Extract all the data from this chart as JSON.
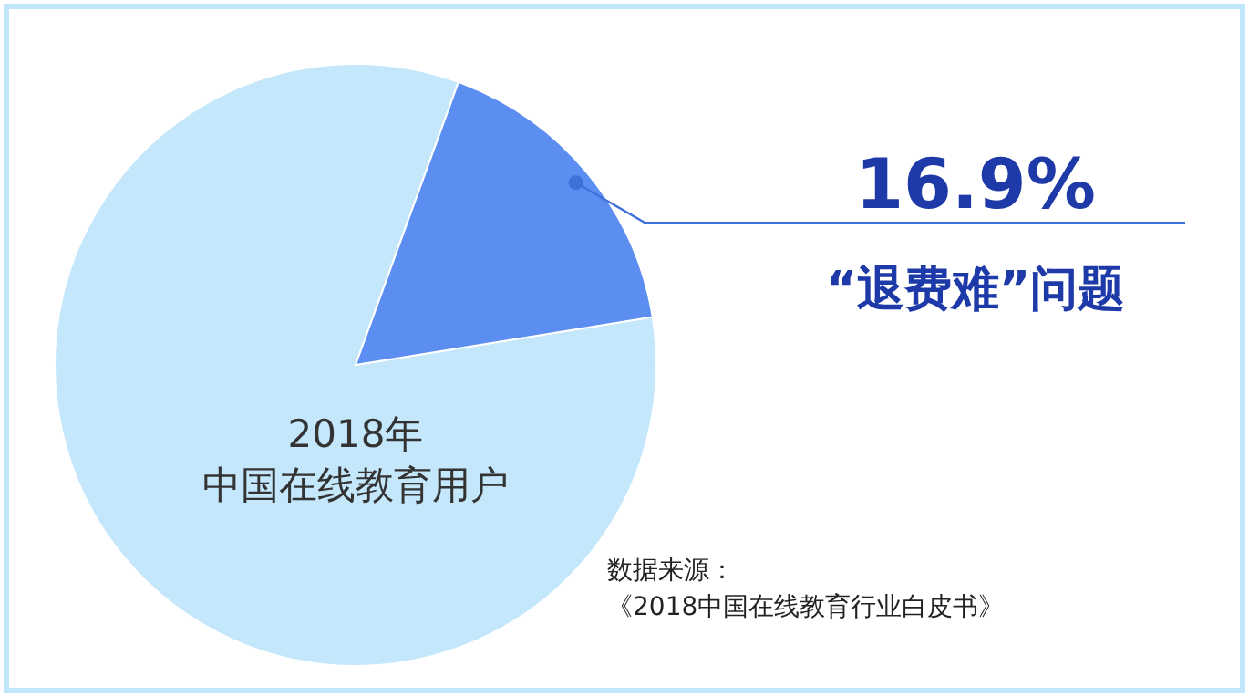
{
  "chart_data": {
    "type": "pie",
    "categories": [
      "2018年中国在线教育用户",
      "“退费难”问题"
    ],
    "values": [
      83.1,
      16.9
    ],
    "colors": [
      "#c4e7fb",
      "#5b8ef0"
    ],
    "value_labels": [
      null,
      "16.9%"
    ],
    "legend": false,
    "annotations": [
      "数据来源：",
      "《2018中国在线教育行业白皮书》"
    ]
  }
}
